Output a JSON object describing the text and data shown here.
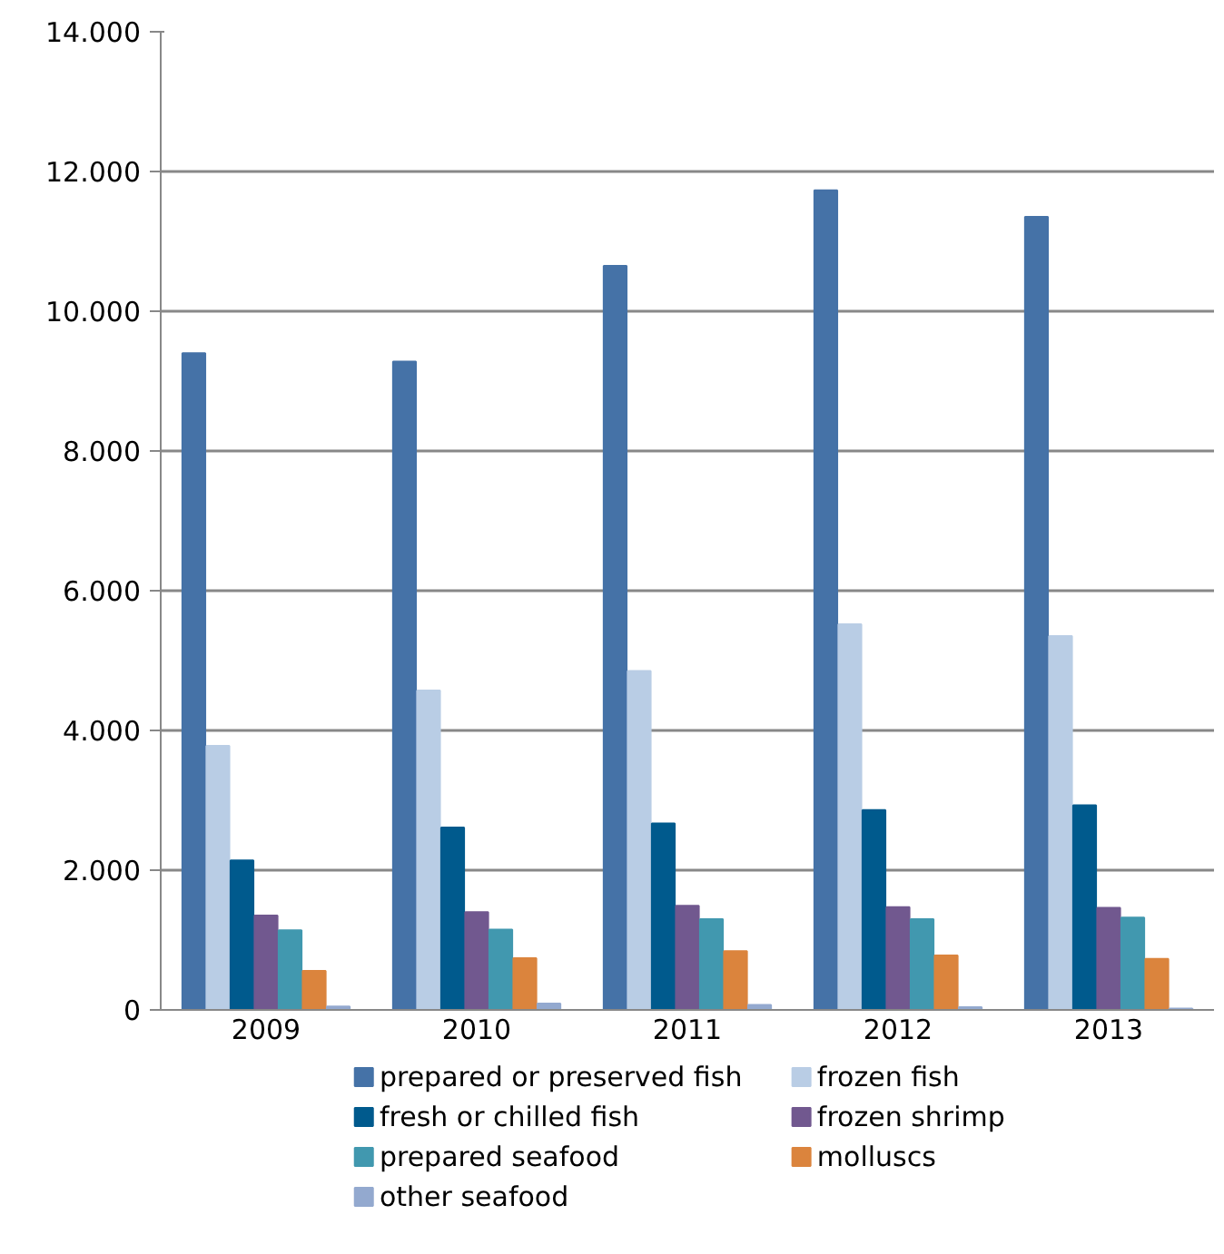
{
  "chart_data": {
    "type": "bar",
    "categories": [
      "2009",
      "2010",
      "2011",
      "2012",
      "2013"
    ],
    "series": [
      {
        "name": "prepared or preserved fish",
        "color": "#4572a7",
        "values": [
          9400,
          9280,
          10650,
          11730,
          11350
        ]
      },
      {
        "name": "frozen fish",
        "color": "#b9cde5",
        "values": [
          3780,
          4570,
          4850,
          5520,
          5350
        ]
      },
      {
        "name": "fresh or chilled fish",
        "color": "#005a8d",
        "values": [
          2140,
          2610,
          2670,
          2860,
          2930
        ]
      },
      {
        "name": "frozen shrimp",
        "color": "#71588f",
        "values": [
          1350,
          1400,
          1490,
          1470,
          1460
        ]
      },
      {
        "name": "prepared seafood",
        "color": "#4198af",
        "values": [
          1140,
          1150,
          1300,
          1300,
          1320
        ]
      },
      {
        "name": "molluscs",
        "color": "#db843d",
        "values": [
          560,
          740,
          840,
          780,
          730
        ]
      },
      {
        "name": "other seafood",
        "color": "#93a9cf",
        "values": [
          50,
          90,
          70,
          40,
          20
        ]
      }
    ],
    "ylim": [
      0,
      14000
    ],
    "yticks": [
      {
        "value": 0,
        "label": "0"
      },
      {
        "value": 2000,
        "label": "2.000"
      },
      {
        "value": 4000,
        "label": "4.000"
      },
      {
        "value": 6000,
        "label": "6.000"
      },
      {
        "value": 8000,
        "label": "8.000"
      },
      {
        "value": 10000,
        "label": "10.000"
      },
      {
        "value": 12000,
        "label": "12.000"
      },
      {
        "value": 14000,
        "label": "14.000"
      }
    ],
    "grid": "y",
    "legend": "bottom"
  }
}
